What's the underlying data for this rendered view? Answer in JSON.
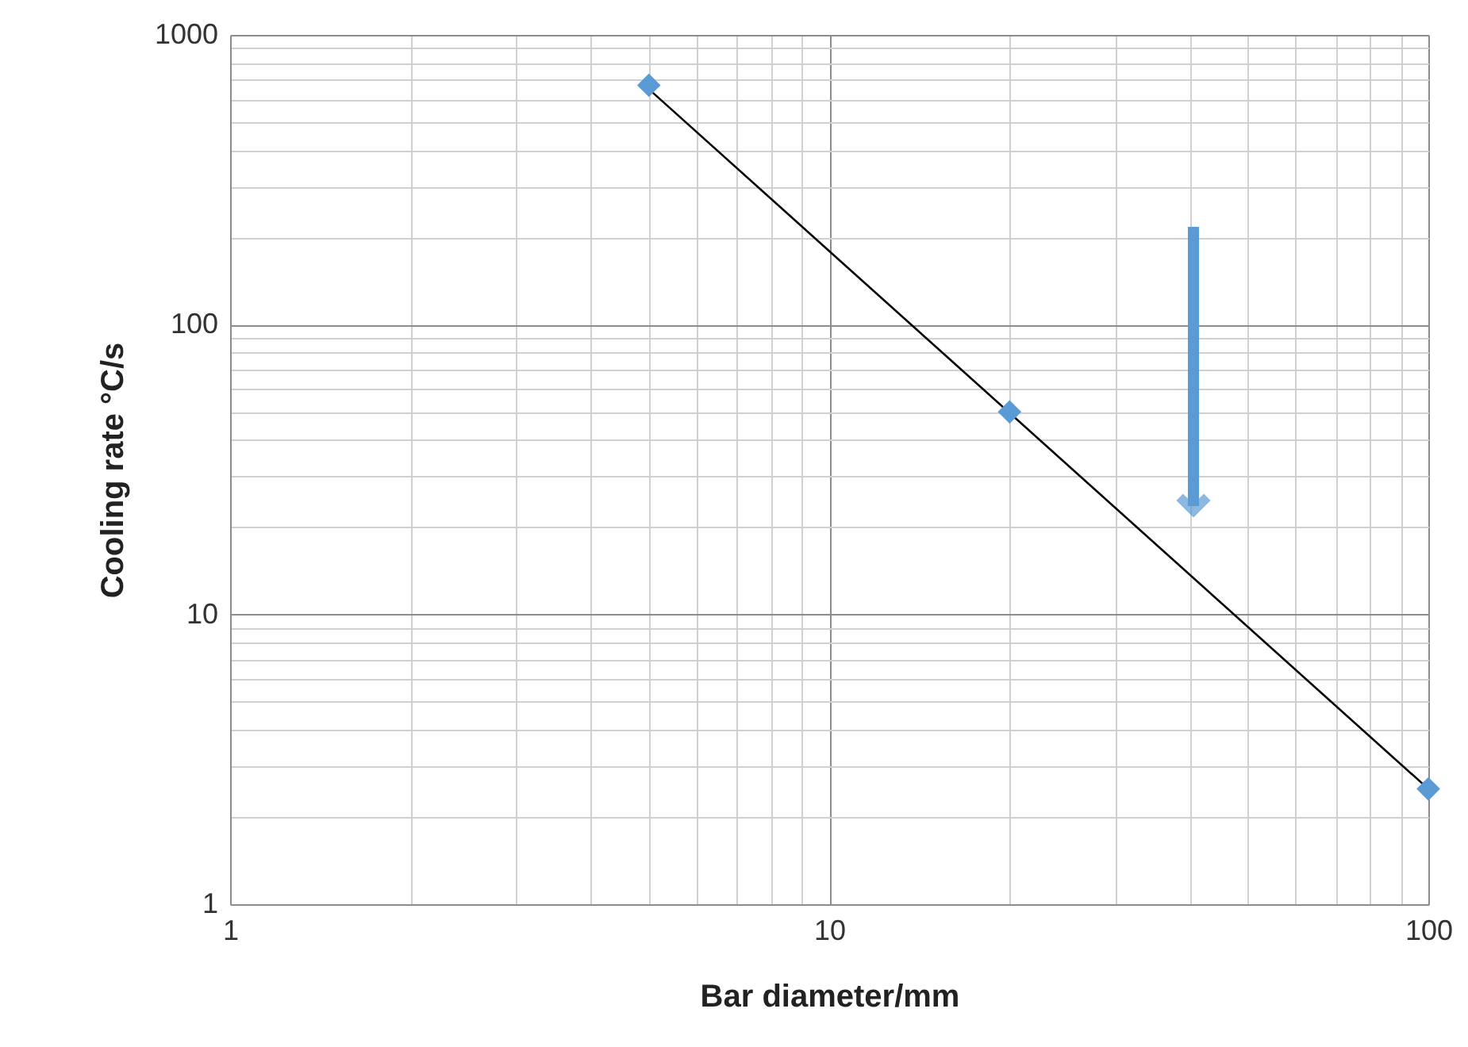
{
  "chart_data": {
    "type": "scatter",
    "xlabel": "Bar diameter/mm",
    "ylabel": "Cooling rate °C/s",
    "log": "xy",
    "grid": true,
    "marker": "diamond",
    "x": [
      5,
      20,
      100
    ],
    "series": [
      {
        "color": "#5b9bd5",
        "values": [
          670,
          50,
          2.5
        ]
      },
      {
        "type": "line",
        "color": "#000000",
        "marker": "none",
        "x": [
          5,
          100
        ],
        "values": [
          650,
          2.5
        ]
      }
    ],
    "xlim": [
      1,
      100
    ],
    "ylim": [
      1,
      1000
    ],
    "xticks": [
      1,
      {
        "value": 2,
        "label": null
      },
      {
        "value": 3,
        "label": null
      },
      {
        "value": 4,
        "label": null
      },
      {
        "value": 5,
        "label": null
      },
      {
        "value": 6,
        "label": null
      },
      {
        "value": 7,
        "label": null
      },
      {
        "value": 8,
        "label": null
      },
      {
        "value": 9,
        "label": null
      },
      10,
      {
        "value": 20,
        "label": null
      },
      {
        "value": 30,
        "label": null
      },
      {
        "value": 40,
        "label": null
      },
      {
        "value": 50,
        "label": null
      },
      {
        "value": 60,
        "label": null
      },
      {
        "value": 70,
        "label": null
      },
      {
        "value": 80,
        "label": null
      },
      {
        "value": 90,
        "label": null
      },
      100
    ],
    "yticks": [
      1,
      {
        "value": 2,
        "label": null
      },
      {
        "value": 3,
        "label": null
      },
      {
        "value": 4,
        "label": null
      },
      {
        "value": 5,
        "label": null
      },
      {
        "value": 6,
        "label": null
      },
      {
        "value": 7,
        "label": null
      },
      {
        "value": 8,
        "label": null
      },
      {
        "value": 9,
        "label": null
      },
      10,
      {
        "value": 20,
        "label": null
      },
      {
        "value": 30,
        "label": null
      },
      {
        "value": 40,
        "label": null
      },
      {
        "value": 50,
        "label": null
      },
      {
        "value": 60,
        "label": null
      },
      {
        "value": 70,
        "label": null
      },
      {
        "value": 80,
        "label": null
      },
      {
        "value": 90,
        "label": null
      },
      100,
      {
        "value": 200,
        "label": null
      },
      {
        "value": 300,
        "label": null
      },
      {
        "value": 400,
        "label": null
      },
      {
        "value": 500,
        "label": null
      },
      {
        "value": 600,
        "label": null
      },
      {
        "value": 700,
        "label": null
      },
      {
        "value": 800,
        "label": null
      },
      {
        "value": 900,
        "label": null
      },
      1000
    ]
  }
}
